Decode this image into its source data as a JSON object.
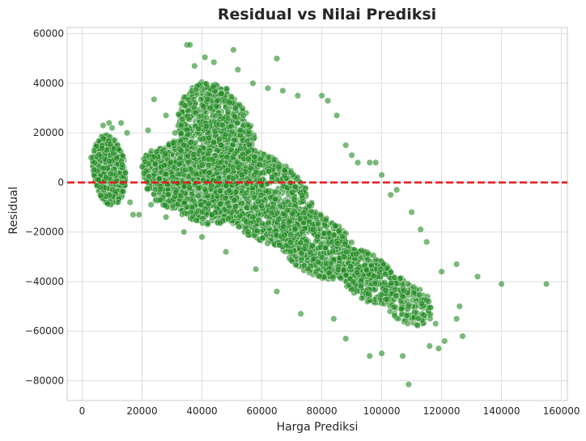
{
  "chart_data": {
    "type": "scatter",
    "title": "Residual vs Nilai Prediksi",
    "xlabel": "Harga Prediksi",
    "ylabel": "Residual",
    "xlim": [
      -5000,
      162000
    ],
    "ylim": [
      -88000,
      62500
    ],
    "xticks": [
      0,
      20000,
      40000,
      60000,
      80000,
      100000,
      120000,
      140000,
      160000
    ],
    "yticks": [
      -80000,
      -60000,
      -40000,
      -20000,
      0,
      20000,
      40000,
      60000
    ],
    "xtick_labels": [
      "0",
      "20000",
      "40000",
      "60000",
      "80000",
      "100000",
      "120000",
      "140000",
      "160000"
    ],
    "ytick_labels": [
      "−80000",
      "−60000",
      "−40000",
      "−20000",
      "0",
      "20000",
      "40000",
      "60000"
    ],
    "grid": true,
    "reference_line": {
      "y": 0,
      "color": "#e41a1c",
      "style": "dashed"
    },
    "series": [
      {
        "color": "#228B22",
        "points": [
          [
            35000,
            55500
          ],
          [
            36000,
            55500
          ],
          [
            50500,
            53500
          ],
          [
            65000,
            50000
          ],
          [
            41000,
            50500
          ],
          [
            37500,
            47000
          ],
          [
            44000,
            48500
          ],
          [
            52000,
            45500
          ],
          [
            57000,
            40000
          ],
          [
            62000,
            38000
          ],
          [
            67000,
            37000
          ],
          [
            72000,
            35000
          ],
          [
            80000,
            35000
          ],
          [
            82000,
            33000
          ],
          [
            85000,
            27000
          ],
          [
            88000,
            15000
          ],
          [
            90000,
            11000
          ],
          [
            92000,
            8000
          ],
          [
            96000,
            8000
          ],
          [
            98000,
            8000
          ],
          [
            100000,
            3000
          ],
          [
            103000,
            -5000
          ],
          [
            105000,
            -3000
          ],
          [
            110000,
            -12000
          ],
          [
            113000,
            -19000
          ],
          [
            115000,
            -24000
          ],
          [
            120000,
            -36000
          ],
          [
            125000,
            -33000
          ],
          [
            132000,
            -38000
          ],
          [
            140000,
            -41000
          ],
          [
            155000,
            -41000
          ],
          [
            126000,
            -50000
          ],
          [
            125000,
            -55000
          ],
          [
            127000,
            -62000
          ],
          [
            121000,
            -64000
          ],
          [
            119000,
            -67000
          ],
          [
            116000,
            -66000
          ],
          [
            118000,
            -57000
          ],
          [
            107000,
            -70000
          ],
          [
            109000,
            -81500
          ],
          [
            96000,
            -70000
          ],
          [
            100000,
            -69000
          ],
          [
            88000,
            -63000
          ],
          [
            84000,
            -55000
          ],
          [
            73000,
            -53000
          ],
          [
            65000,
            -44000
          ],
          [
            58000,
            -35000
          ],
          [
            48000,
            -28000
          ],
          [
            40000,
            -22000
          ],
          [
            34000,
            -20000
          ],
          [
            28000,
            -14000
          ],
          [
            23000,
            -9000
          ],
          [
            19000,
            -13000
          ],
          [
            17000,
            -13000
          ],
          [
            22000,
            21000
          ],
          [
            24000,
            33500
          ],
          [
            28000,
            27000
          ],
          [
            31000,
            20000
          ],
          [
            33000,
            13000
          ],
          [
            15000,
            20000
          ],
          [
            9000,
            24000
          ],
          [
            7000,
            23000
          ],
          [
            3000,
            10000
          ],
          [
            4000,
            5000
          ],
          [
            12000,
            -8000
          ],
          [
            16000,
            -8000
          ],
          [
            10000,
            22000
          ],
          [
            13000,
            24000
          ],
          [
            6000,
            -2000
          ],
          [
            8000,
            2000
          ]
        ]
      }
    ],
    "density_regions": [
      {
        "cx": 9000,
        "cy": 5000,
        "rx": 5500,
        "ry": 14000,
        "n": 650,
        "seed": 11
      },
      {
        "cx": 45000,
        "cy": 18000,
        "rx": 13000,
        "ry": 22000,
        "n": 900,
        "seed": 23
      },
      {
        "cx": 60000,
        "cy": -6000,
        "rx": 18000,
        "ry": 18000,
        "n": 900,
        "seed": 37
      },
      {
        "cx": 38000,
        "cy": 0,
        "rx": 14000,
        "ry": 16000,
        "n": 700,
        "seed": 41
      },
      {
        "cx": 78000,
        "cy": -25000,
        "rx": 14000,
        "ry": 13000,
        "n": 600,
        "seed": 53
      },
      {
        "cx": 95000,
        "cy": -38000,
        "rx": 10000,
        "ry": 10000,
        "n": 350,
        "seed": 67
      },
      {
        "cx": 108000,
        "cy": -48000,
        "rx": 9000,
        "ry": 9000,
        "n": 160,
        "seed": 79
      },
      {
        "cx": 28000,
        "cy": 2000,
        "rx": 8000,
        "ry": 12000,
        "n": 300,
        "seed": 83
      }
    ]
  }
}
